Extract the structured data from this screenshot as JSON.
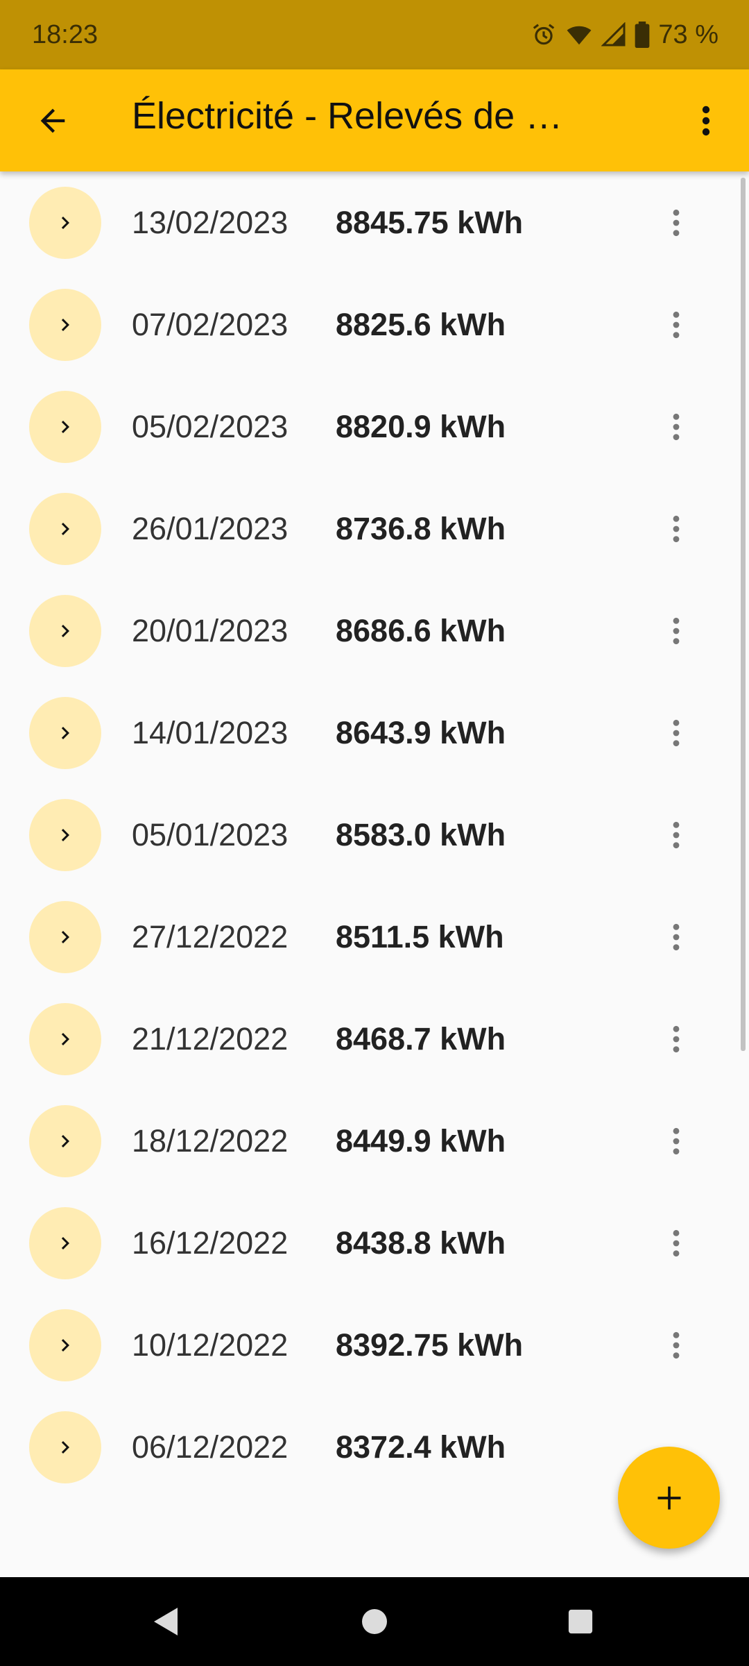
{
  "status_bar": {
    "time": "18:23",
    "battery_text": "73 %",
    "icons": [
      "alarm-icon",
      "wifi-icon",
      "signal-icon",
      "battery-icon"
    ]
  },
  "app_bar": {
    "title": "Électricité - Relevés de …",
    "back_icon": "arrow-left-icon",
    "menu_icon": "more-vert-icon"
  },
  "readings": [
    {
      "date": "13/02/2023",
      "value": "8845.75 kWh"
    },
    {
      "date": "07/02/2023",
      "value": "8825.6 kWh"
    },
    {
      "date": "05/02/2023",
      "value": "8820.9 kWh"
    },
    {
      "date": "26/01/2023",
      "value": "8736.8 kWh"
    },
    {
      "date": "20/01/2023",
      "value": "8686.6 kWh"
    },
    {
      "date": "14/01/2023",
      "value": "8643.9 kWh"
    },
    {
      "date": "05/01/2023",
      "value": "8583.0 kWh"
    },
    {
      "date": "27/12/2022",
      "value": "8511.5 kWh"
    },
    {
      "date": "21/12/2022",
      "value": "8468.7 kWh"
    },
    {
      "date": "18/12/2022",
      "value": "8449.9 kWh"
    },
    {
      "date": "16/12/2022",
      "value": "8438.8 kWh"
    },
    {
      "date": "10/12/2022",
      "value": "8392.75 kWh"
    },
    {
      "date": "06/12/2022",
      "value": "8372.4 kWh"
    }
  ],
  "fab": {
    "icon": "plus-icon"
  },
  "colors": {
    "status_bar": "#bf9104",
    "app_bar": "#ffc107",
    "expand_circle": "#ffecb3",
    "background": "#fafafa"
  },
  "nav_bar": {
    "icons": [
      "back-triangle-icon",
      "home-circle-icon",
      "recents-square-icon"
    ]
  }
}
